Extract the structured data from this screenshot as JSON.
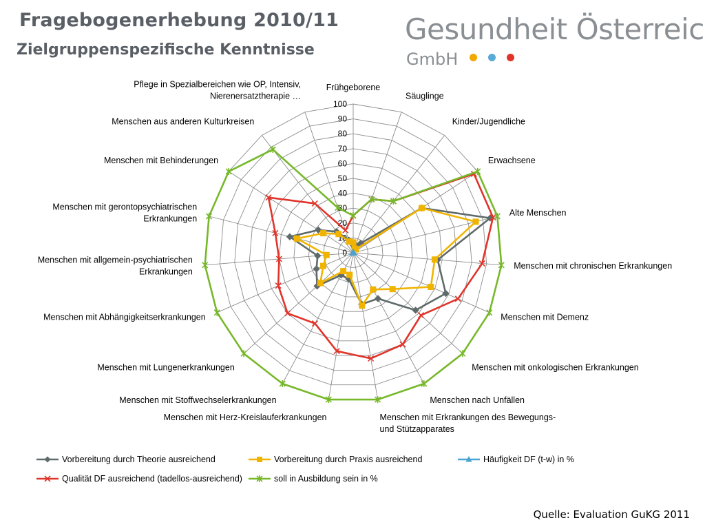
{
  "header": {
    "title": "Fragebogenerhebung 2010/11",
    "subtitle": "Zielgruppenspezifische Kenntnisse"
  },
  "logo": {
    "name": "Gesundheit Österreich",
    "sub": "GmbH",
    "dot_colors": [
      "#f2a900",
      "#5aa9d6",
      "#e0342a"
    ]
  },
  "footer": {
    "source": "Quelle: Evaluation GuKG 2011"
  },
  "chart_data": {
    "type": "radar",
    "rmin": 0,
    "rmax": 100,
    "ticks": [
      0,
      10,
      20,
      30,
      40,
      50,
      60,
      70,
      80,
      90,
      100
    ],
    "grid": true,
    "legend_position": "bottom",
    "categories": [
      "Frühgeborene",
      "Säuglinge",
      "Kinder/Jugendliche",
      "Erwachsene",
      "Alte Menschen",
      "Menschen mit chronischen Erkrankungen",
      "Menschen mit Demenz",
      "Menschen mit onkologischen Erkrankungen",
      "Menschen nach Unfällen",
      "Menschen mit Erkrankungen des Bewegungs- und Stützapparates",
      "Menschen mit Herz-Kreislauferkrankungen",
      "Menschen mit Stoffwechselerkrankungen",
      "Menschen mit Lungenerkrankungen",
      "Menschen mit Abhängigkeitserkrankungen",
      "Menschen mit allgemein-psychiatrischen Erkrankungen",
      "Menschen mit gerontopsychiatrischen Erkrankungen",
      "Menschen mit Behinderungen",
      "Menschen aus anderen Kulturkreisen",
      "Pflege in Spezialbereichen wie OP, Intensiv, Nierenersatztherapie …"
    ],
    "category_lines": [
      [
        "Frühgeborene"
      ],
      [
        "Säuglinge"
      ],
      [
        "Kinder/Jugendliche"
      ],
      [
        "Erwachsene"
      ],
      [
        "Alte Menschen"
      ],
      [
        "Menschen mit chronischen Erkrankungen"
      ],
      [
        "Menschen mit Demenz"
      ],
      [
        "Menschen mit onkologischen Erkrankungen"
      ],
      [
        "Menschen nach Unfällen"
      ],
      [
        "Menschen mit Erkrankungen des Bewegungs-",
        "und Stützapparates"
      ],
      [
        "Menschen mit Herz-Kreislauferkrankungen"
      ],
      [
        "Menschen mit Stoffwechselerkrankungen"
      ],
      [
        "Menschen mit Lungenerkrankungen"
      ],
      [
        "Menschen mit Abhängigkeitserkrankungen"
      ],
      [
        "Menschen mit allgemein-psychiatrischen",
        "Erkrankungen"
      ],
      [
        "Menschen mit gerontopsychiatrischen",
        "Erkrankungen"
      ],
      [
        "Menschen mit Behinderungen"
      ],
      [
        "Menschen aus anderen Kulturkreisen"
      ],
      [
        "Pflege in Spezialbereichen wie OP, Intensiv,",
        "Nierenersatztherapie …"
      ]
    ],
    "series": [
      {
        "name": "Vorbereitung durch Theorie ausreichend",
        "color": "#5f6a6a",
        "marker": "diamond",
        "values": [
          5,
          5,
          8,
          55,
          95,
          57,
          68,
          57,
          35,
          35,
          18,
          17,
          33,
          27,
          24,
          44,
          28,
          18,
          9
        ]
      },
      {
        "name": "Vorbereitung durch Praxis ausreichend",
        "color": "#f0b400",
        "marker": "square",
        "values": [
          7,
          3,
          3,
          55,
          85,
          55,
          57,
          36,
          28,
          36,
          15,
          14,
          30,
          22,
          18,
          39,
          24,
          16,
          8
        ]
      },
      {
        "name": "Häufigkeit DF (t-w) in %",
        "color": "#4aa3d0",
        "marker": "triangle",
        "values": [
          0,
          0,
          0,
          0,
          0,
          0,
          0,
          0,
          0,
          0,
          0,
          0,
          0,
          0,
          0,
          0,
          0,
          0,
          0
        ]
      },
      {
        "name": "Qualität DF ausreichend (tadellos-ausreichend)",
        "color": "#e0342a",
        "marker": "x",
        "values": [
          25,
          38,
          44,
          97,
          97,
          87,
          77,
          62,
          70,
          72,
          67,
          54,
          60,
          55,
          50,
          54,
          68,
          42,
          16
        ]
      },
      {
        "name": "soll in Ausbildung sein in %",
        "color": "#77b82a",
        "marker": "star",
        "values": [
          25,
          38,
          44,
          100,
          100,
          100,
          100,
          100,
          100,
          100,
          100,
          100,
          100,
          100,
          100,
          100,
          100,
          88,
          32
        ]
      }
    ]
  }
}
